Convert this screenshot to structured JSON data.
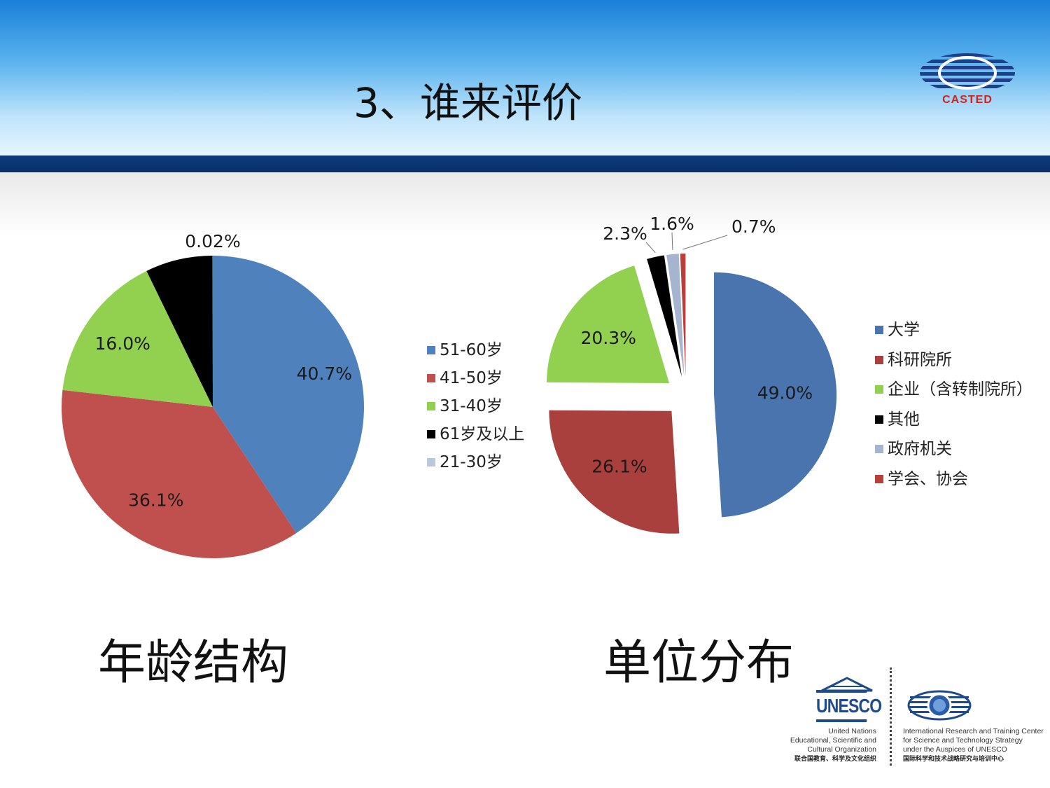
{
  "slide": {
    "title": "3、谁来评价"
  },
  "casted_logo": {
    "text": "CASTED",
    "color": "#d1221c"
  },
  "captions": {
    "age": "年龄结构",
    "org": "单位分布"
  },
  "footer": {
    "unesco_wordmark": "UNESCO",
    "unesco_lines": [
      "United Nations",
      "Educational, Scientific and",
      "Cultural Organization",
      "联合国教育、科学及文化组织"
    ],
    "irtc_lines": [
      "International Research and Training Center",
      "for Science and Technology Strategy",
      "under the Auspices of UNESCO",
      "国际科学和技术战略研究与培训中心"
    ]
  },
  "chart_data": [
    {
      "type": "pie",
      "title": "年龄结构",
      "legend_position": "right",
      "slices": [
        {
          "label": "51-60岁",
          "value": 40.7,
          "display": "40.7%",
          "color": "#4f81bd"
        },
        {
          "label": "41-50岁",
          "value": 36.1,
          "display": "36.1%",
          "color": "#c0504d"
        },
        {
          "label": "31-40岁",
          "value": 16.0,
          "display": "16.0%",
          "color": "#92d050"
        },
        {
          "label": "61岁及以上",
          "value": 7.2,
          "display": "",
          "color": "#000000"
        },
        {
          "label": "21-30岁",
          "value": 0.02,
          "display": "0.02%",
          "color": "#b9c7e0"
        }
      ]
    },
    {
      "type": "pie",
      "title": "单位分布",
      "exploded": true,
      "legend_position": "right",
      "slices": [
        {
          "label": "大学",
          "value": 49.0,
          "display": "49.0%",
          "color": "#4a74ad"
        },
        {
          "label": "科研院所",
          "value": 26.1,
          "display": "26.1%",
          "color": "#a9403d"
        },
        {
          "label": "企业（含转制院所）",
          "value": 20.3,
          "display": "20.3%",
          "color": "#92d050"
        },
        {
          "label": "其他",
          "value": 2.3,
          "display": "2.3%",
          "color": "#000000"
        },
        {
          "label": " 政府机关",
          "value": 1.6,
          "display": "1.6%",
          "color": "#a5b4cf"
        },
        {
          "label": "学会、协会",
          "value": 0.7,
          "display": "0.7%",
          "color": "#b8403a"
        }
      ]
    }
  ]
}
